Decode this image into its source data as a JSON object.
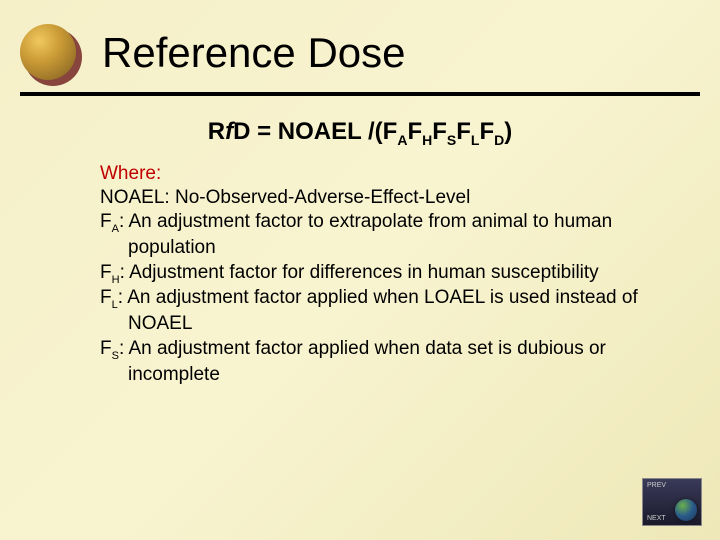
{
  "slide": {
    "title": "Reference Dose",
    "formula": {
      "prefix": "R",
      "italic_f": "f",
      "eq": "D = NOAEL /(F",
      "sub1": "A",
      "f2": "F",
      "sub2": "H",
      "f3": "F",
      "sub3": "S",
      "f4": "F",
      "sub4": "L",
      "f5": "F",
      "sub5": "D",
      "close": ")"
    },
    "where_label": "Where:",
    "defs": [
      {
        "term": "NOAEL",
        "sub": "",
        "text": ": No-Observed-Adverse-Effect-Level"
      },
      {
        "term": "F",
        "sub": "A",
        "text": ": An adjustment factor to extrapolate from animal to human population"
      },
      {
        "term": "F",
        "sub": "H",
        "text": ": Adjustment factor for differences in human susceptibility"
      },
      {
        "term": "F",
        "sub": "L",
        "text": ": An adjustment factor applied when LOAEL is used instead of NOAEL"
      },
      {
        "term": "F",
        "sub": "S",
        "text": ": An adjustment factor applied when data set  is dubious or incomplete"
      }
    ],
    "nav": {
      "prev": "PREV",
      "next": "NEXT"
    },
    "colors": {
      "where_color": "#c00000",
      "divider_color": "#000000",
      "bg_gradient_start": "#f5f0c8",
      "bg_gradient_end": "#eee8b8"
    },
    "fonts": {
      "title_size_pt": 32,
      "formula_size_pt": 18,
      "body_size_pt": 14
    }
  }
}
